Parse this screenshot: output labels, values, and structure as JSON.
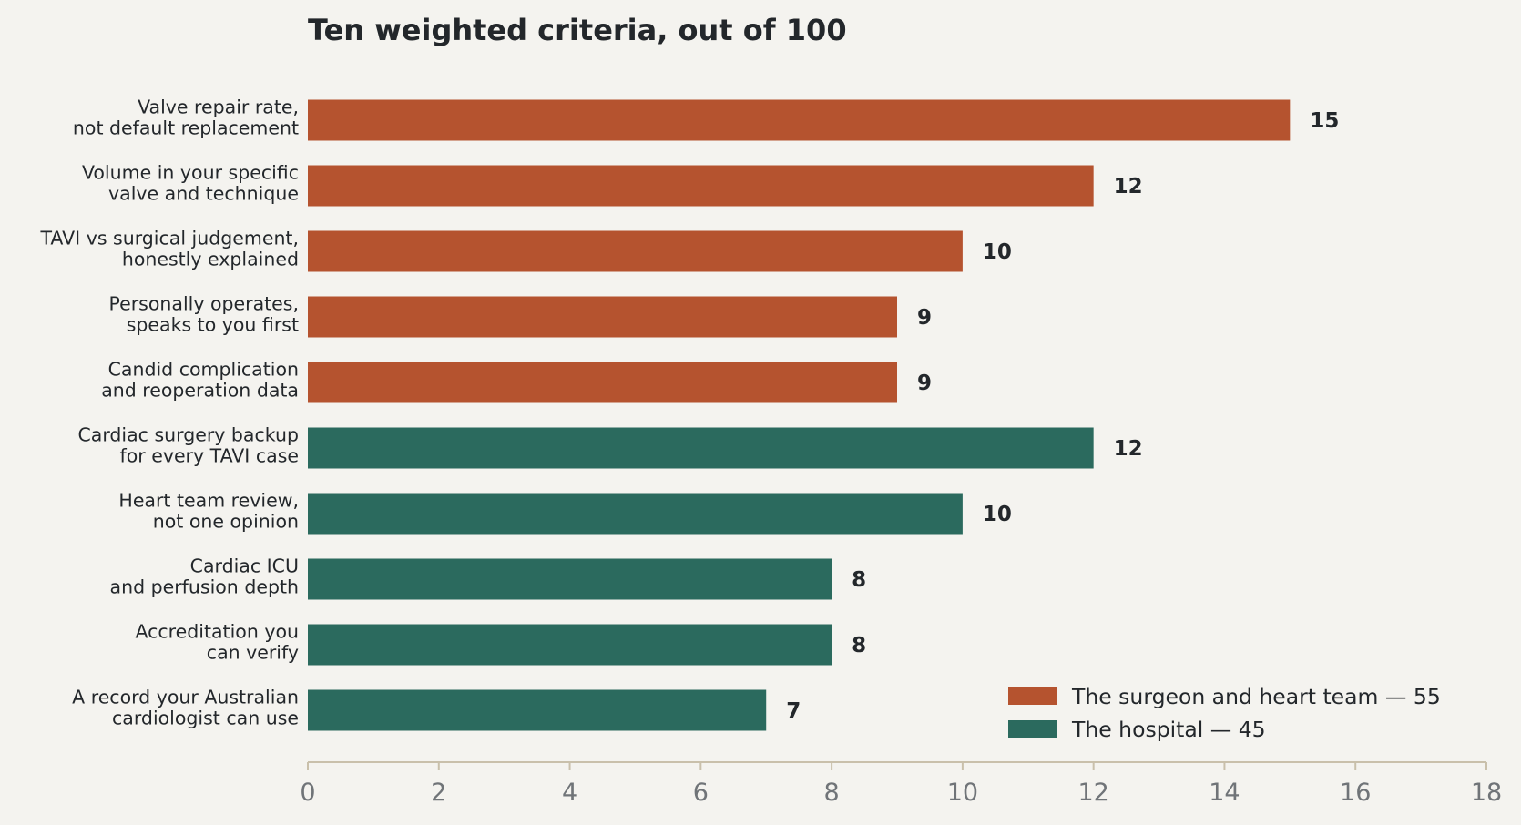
{
  "chart_data": {
    "type": "bar",
    "orientation": "horizontal",
    "title": "Ten weighted criteria, out of 100",
    "xlabel": "",
    "ylabel": "",
    "xlim": [
      0,
      18
    ],
    "xticks": [
      0,
      2,
      4,
      6,
      8,
      10,
      12,
      14,
      16,
      18
    ],
    "grid": false,
    "legend_position": "bottom-right",
    "categories": [
      [
        "Valve repair rate,",
        "not default replacement"
      ],
      [
        "Volume in your specific",
        "valve and technique"
      ],
      [
        "TAVI vs surgical judgement,",
        "honestly explained"
      ],
      [
        "Personally operates,",
        "speaks to you first"
      ],
      [
        "Candid complication",
        "and reoperation data"
      ],
      [
        "Cardiac surgery backup",
        "for every TAVI case"
      ],
      [
        "Heart team review,",
        "not one opinion"
      ],
      [
        "Cardiac ICU",
        "and perfusion depth"
      ],
      [
        "Accreditation you",
        "can verify"
      ],
      [
        "A record your Australian",
        "cardiologist can use"
      ]
    ],
    "series": [
      {
        "name": "The surgeon and heart team — 55",
        "color": "#b5532f",
        "values": [
          15,
          12,
          10,
          9,
          9,
          null,
          null,
          null,
          null,
          null
        ]
      },
      {
        "name": "The hospital — 45",
        "color": "#2b6a5e",
        "values": [
          null,
          null,
          null,
          null,
          null,
          12,
          10,
          8,
          8,
          7
        ]
      }
    ]
  }
}
